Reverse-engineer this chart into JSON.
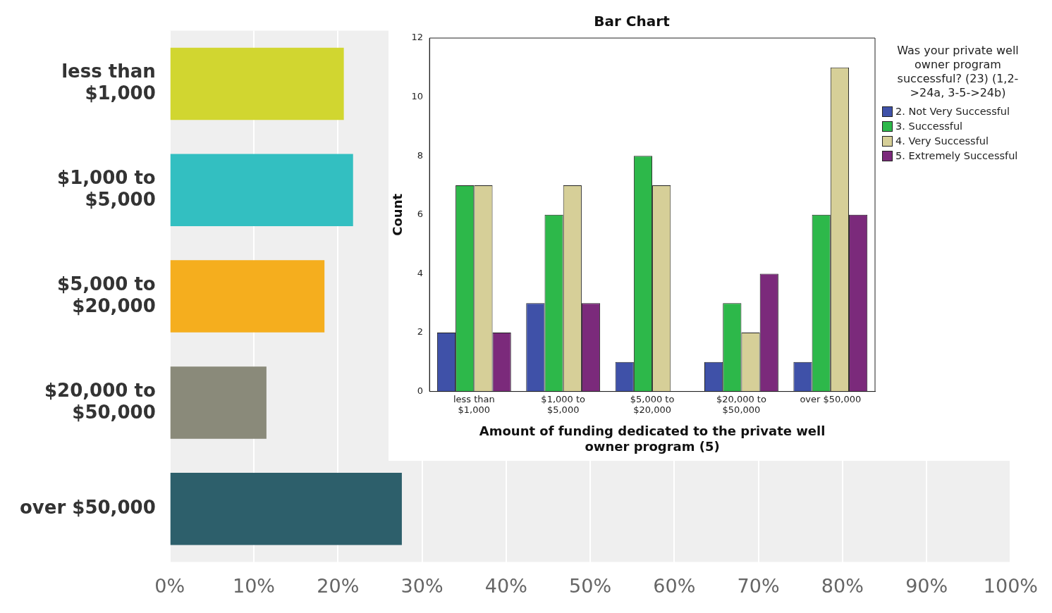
{
  "chart_data": [
    {
      "type": "bar",
      "orientation": "horizontal",
      "categories": [
        "less than $1,000",
        "$1,000 to $5,000",
        "$5,000 to $20,000",
        "$20,000 to $50,000",
        "over $50,000"
      ],
      "values": [
        20.7,
        21.8,
        18.4,
        11.5,
        27.6
      ],
      "colors": [
        "#d1d630",
        "#33bfc1",
        "#f5ae1e",
        "#8a8a7a",
        "#2d5f6b"
      ],
      "xlim": [
        0,
        100
      ],
      "xticks": [
        {
          "value": 0,
          "label": "0%"
        },
        {
          "value": 10,
          "label": "10%"
        },
        {
          "value": 20,
          "label": "20%"
        },
        {
          "value": 30,
          "label": "30%"
        },
        {
          "value": 40,
          "label": "40%"
        },
        {
          "value": 50,
          "label": "50%"
        },
        {
          "value": 60,
          "label": "60%"
        },
        {
          "value": 70,
          "label": "70%"
        },
        {
          "value": 80,
          "label": "80%"
        },
        {
          "value": 90,
          "label": "90%"
        },
        {
          "value": 100,
          "label": "100%"
        }
      ],
      "grid": "x"
    },
    {
      "type": "bar",
      "title": "Bar Chart",
      "xlabel": "Amount of funding dedicated to the private well owner program (5)",
      "ylabel": "Count",
      "legend_title": "Was your private well owner program successful? (23) (1,2->24a, 3-5->24b)",
      "categories": [
        "less than $1,000",
        "$1,000 to $5,000",
        "$5,000 to $20,000",
        "$20,000 to $50,000",
        "over $50,000"
      ],
      "series": [
        {
          "name": "2. Not Very Successful",
          "color": "#3f51a8",
          "values": [
            2,
            3,
            1,
            1,
            1
          ]
        },
        {
          "name": "3. Successful",
          "color": "#2db84a",
          "values": [
            7,
            6,
            8,
            3,
            6
          ]
        },
        {
          "name": "4. Very Successful",
          "color": "#d6cf98",
          "values": [
            7,
            7,
            7,
            2,
            11
          ]
        },
        {
          "name": "5. Extremely Successful",
          "color": "#7b2a7b",
          "values": [
            2,
            3,
            0,
            4,
            6
          ]
        }
      ],
      "ylim": [
        0,
        12
      ],
      "yticks": [
        0,
        2,
        4,
        6,
        8,
        10,
        12
      ],
      "grid": false,
      "legend": "right"
    }
  ]
}
